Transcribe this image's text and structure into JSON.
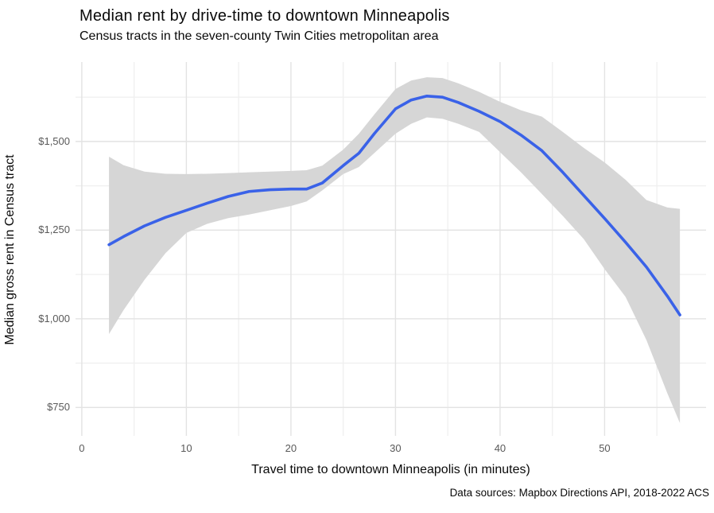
{
  "header": {
    "title": "Median rent by drive-time to downtown Minneapolis",
    "subtitle": "Census tracts in the seven-county Twin Cities metropolitan area"
  },
  "caption": "Data sources: Mapbox Directions API, 2018-2022 ACS",
  "chart_data": {
    "type": "line",
    "title": "Median rent by drive-time to downtown Minneapolis",
    "subtitle": "Census tracts in the seven-county Twin Cities metropolitan area",
    "xlabel": "Travel time to downtown Minneapolis (in minutes)",
    "ylabel": "Median gross rent in Census tract",
    "caption": "Data sources: Mapbox Directions API, 2018-2022 ACS",
    "xlim": [
      -0.6,
      59.7
    ],
    "ylim": [
      670,
      1724
    ],
    "grid": "major and minor gridlines, light gray, no axis lines, no tick marks (ggplot theme_minimal)",
    "legend": "none",
    "x_ticks": [
      {
        "value": 0,
        "label": "0"
      },
      {
        "value": 10,
        "label": "10"
      },
      {
        "value": 20,
        "label": "20"
      },
      {
        "value": 30,
        "label": "30"
      },
      {
        "value": 40,
        "label": "40"
      },
      {
        "value": 50,
        "label": "50"
      }
    ],
    "x_minor": [
      5,
      15,
      25,
      35,
      45,
      55
    ],
    "y_ticks": [
      {
        "value": 750,
        "label": "$750"
      },
      {
        "value": 1000,
        "label": "$1,000"
      },
      {
        "value": 1250,
        "label": "$1,250"
      },
      {
        "value": 1500,
        "label": "$1,500"
      }
    ],
    "y_minor": [
      875,
      1125,
      1375,
      1625
    ],
    "smooth_line": {
      "name": "Smoothed median gross rent (with confidence band)",
      "x": [
        2.6,
        4,
        6,
        8,
        10,
        12,
        14,
        16,
        18,
        20,
        21.5,
        23,
        25,
        26.5,
        28,
        30,
        31.5,
        33,
        34.5,
        36,
        38,
        40,
        42,
        44,
        46,
        48,
        50,
        52,
        54,
        56,
        57.2
      ],
      "y": [
        1209,
        1232,
        1262,
        1286,
        1306,
        1326,
        1345,
        1359,
        1364,
        1366,
        1366,
        1383,
        1432,
        1467,
        1523,
        1592,
        1617,
        1628,
        1625,
        1610,
        1585,
        1556,
        1518,
        1474,
        1413,
        1348,
        1283,
        1216,
        1146,
        1064,
        1011
      ],
      "ci_lower": [
        957,
        1025,
        1110,
        1185,
        1242,
        1268,
        1284,
        1294,
        1306,
        1318,
        1331,
        1362,
        1408,
        1428,
        1468,
        1522,
        1550,
        1568,
        1564,
        1550,
        1527,
        1470,
        1413,
        1352,
        1290,
        1225,
        1140,
        1062,
        940,
        790,
        706
      ],
      "ci_upper": [
        1457,
        1433,
        1415,
        1409,
        1408,
        1409,
        1411,
        1413,
        1415,
        1417,
        1419,
        1432,
        1477,
        1522,
        1577,
        1648,
        1672,
        1681,
        1679,
        1664,
        1640,
        1612,
        1588,
        1570,
        1527,
        1482,
        1441,
        1392,
        1335,
        1314,
        1310
      ]
    },
    "colors": {
      "line": "#3a62e8",
      "ribbon": "#d6d6d6",
      "grid_major": "#e3e3e3",
      "grid_minor": "#f0f0f0",
      "tick_text": "#595959",
      "text": "#0a0a0a",
      "background": "#ffffff"
    }
  }
}
